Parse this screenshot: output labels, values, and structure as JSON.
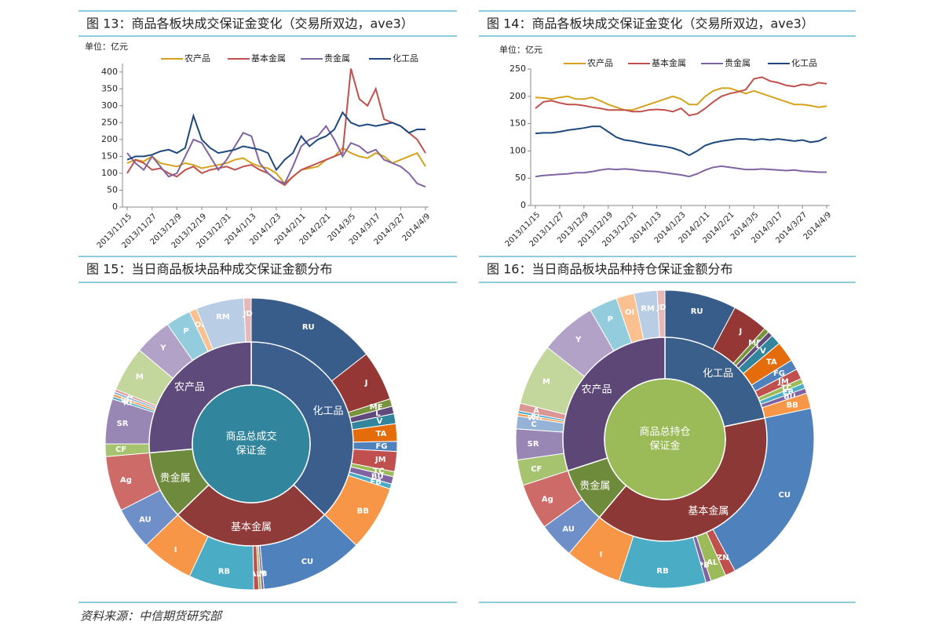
{
  "source": "资料来源：中信期货研究部",
  "chart_data": [
    {
      "type": "line",
      "title": "图 13：商品各板块成交保证金变化（交易所双边，ave3）",
      "unit_label": "单位：亿元",
      "categories": [
        "2013/11/15",
        null,
        null,
        "2013/11/27",
        null,
        null,
        "2013/12/9",
        null,
        null,
        "2013/12/19",
        null,
        null,
        "2013/12/31",
        null,
        null,
        "2014/1/13",
        null,
        null,
        "2014/1/23",
        null,
        null,
        "2014/2/11",
        null,
        null,
        "2014/2/21",
        null,
        null,
        "2014/3/5",
        null,
        null,
        "2014/3/17",
        null,
        null,
        "2014/3/27",
        null,
        null,
        "2014/4/9"
      ],
      "series": [
        {
          "name": "农产品",
          "color": "#d4a21c",
          "values": [
            130,
            140,
            135,
            150,
            130,
            125,
            120,
            130,
            125,
            115,
            120,
            125,
            130,
            140,
            145,
            130,
            120,
            115,
            100,
            70,
            90,
            110,
            115,
            120,
            140,
            150,
            175,
            160,
            150,
            145,
            160,
            150,
            130,
            140,
            150,
            160,
            120
          ]
        },
        {
          "name": "基本金属",
          "color": "#c0504d",
          "values": [
            100,
            140,
            130,
            110,
            115,
            100,
            90,
            110,
            120,
            100,
            110,
            115,
            120,
            110,
            120,
            125,
            110,
            100,
            80,
            65,
            90,
            110,
            120,
            130,
            140,
            150,
            160,
            410,
            320,
            300,
            350,
            260,
            250,
            240,
            220,
            200,
            160
          ]
        },
        {
          "name": "贵金属",
          "color": "#8064a2",
          "values": [
            160,
            130,
            110,
            150,
            120,
            90,
            100,
            150,
            200,
            190,
            150,
            110,
            140,
            180,
            220,
            210,
            130,
            100,
            80,
            70,
            120,
            180,
            200,
            210,
            240,
            200,
            150,
            190,
            180,
            160,
            170,
            140,
            130,
            120,
            100,
            70,
            60
          ]
        },
        {
          "name": "化工品",
          "color": "#1f497d",
          "values": [
            140,
            150,
            150,
            155,
            165,
            170,
            160,
            175,
            270,
            200,
            175,
            160,
            165,
            170,
            180,
            175,
            170,
            160,
            110,
            140,
            160,
            210,
            180,
            200,
            210,
            230,
            280,
            250,
            240,
            245,
            240,
            245,
            250,
            240,
            220,
            230,
            230
          ]
        }
      ],
      "ylim": [
        0,
        425
      ],
      "yticks": [
        0,
        50,
        100,
        150,
        200,
        250,
        300,
        350,
        400
      ],
      "grid": false
    },
    {
      "type": "line",
      "title": "图 14：商品各板块成交保证金变化（交易所双边，ave3）",
      "unit_label": "单位：亿元",
      "categories": [
        "2013/11/15",
        null,
        null,
        "2013/11/27",
        null,
        null,
        "2013/12/9",
        null,
        null,
        "2013/12/19",
        null,
        null,
        "2013/12/31",
        null,
        null,
        "2014/1/13",
        null,
        null,
        "2014/1/23",
        null,
        null,
        "2014/2/11",
        null,
        null,
        "2014/2/21",
        null,
        null,
        "2014/3/5",
        null,
        null,
        "2014/3/17",
        null,
        null,
        "2014/3/27",
        null,
        null,
        "2014/4/9"
      ],
      "series": [
        {
          "name": "农产品",
          "color": "#d4a21c",
          "values": [
            198,
            197,
            195,
            198,
            200,
            195,
            195,
            198,
            192,
            185,
            180,
            175,
            175,
            180,
            185,
            190,
            195,
            200,
            195,
            185,
            185,
            200,
            210,
            215,
            215,
            210,
            205,
            210,
            205,
            200,
            195,
            190,
            185,
            185,
            183,
            180,
            182
          ]
        },
        {
          "name": "基本金属",
          "color": "#c0504d",
          "values": [
            178,
            190,
            192,
            188,
            185,
            185,
            183,
            180,
            178,
            175,
            175,
            175,
            172,
            172,
            175,
            176,
            175,
            172,
            178,
            165,
            168,
            178,
            190,
            200,
            205,
            208,
            212,
            232,
            235,
            228,
            225,
            220,
            218,
            222,
            220,
            225,
            223
          ]
        },
        {
          "name": "贵金属",
          "color": "#8064a2",
          "values": [
            53,
            55,
            56,
            57,
            58,
            60,
            60,
            62,
            65,
            67,
            66,
            67,
            66,
            64,
            63,
            62,
            60,
            58,
            56,
            53,
            58,
            65,
            70,
            72,
            70,
            68,
            66,
            66,
            67,
            66,
            65,
            64,
            65,
            63,
            62,
            61,
            61
          ]
        },
        {
          "name": "化工品",
          "color": "#1f497d",
          "values": [
            132,
            133,
            133,
            135,
            138,
            140,
            142,
            145,
            145,
            135,
            125,
            120,
            118,
            115,
            112,
            110,
            108,
            105,
            100,
            92,
            100,
            110,
            115,
            118,
            120,
            122,
            122,
            120,
            122,
            120,
            122,
            120,
            118,
            120,
            116,
            118,
            125
          ]
        }
      ],
      "ylim": [
        0,
        250
      ],
      "yticks": [
        0,
        50,
        100,
        150,
        200,
        250
      ],
      "grid": false
    },
    {
      "type": "sunburst",
      "title": "图 15：当日商品板块品种成交保证金额分布",
      "center_label": [
        "商品总成交",
        "保证金"
      ],
      "center_color": "#31859c",
      "groups": [
        {
          "name": "化工品",
          "color": "#3b5e8c",
          "items": [
            {
              "name": "RU",
              "value": 52,
              "color": "#385d8a"
            },
            {
              "name": "J",
              "value": 20,
              "color": "#953735"
            },
            {
              "name": "ME",
              "value": 3,
              "color": "#77933c"
            },
            {
              "name": "L",
              "value": 3,
              "color": "#604a7b"
            },
            {
              "name": "V",
              "value": 4,
              "color": "#31859c"
            },
            {
              "name": "TA",
              "value": 7,
              "color": "#e46c0a"
            },
            {
              "name": "FG",
              "value": 4,
              "color": "#4f81bd"
            },
            {
              "name": "JM",
              "value": 8,
              "color": "#c0504d"
            },
            {
              "name": "TC",
              "value": 2,
              "color": "#9bbb59"
            },
            {
              "name": "BU",
              "value": 3,
              "color": "#8064a2"
            },
            {
              "name": "FB",
              "value": 2,
              "color": "#4bacc6"
            },
            {
              "name": "BB",
              "value": 26,
              "color": "#f79646"
            }
          ]
        },
        {
          "name": "基本金属",
          "color": "#8e3b3a",
          "items": [
            {
              "name": "CU",
              "value": 41,
              "color": "#4f81bd"
            },
            {
              "name": "PB",
              "value": 1,
              "color": "#8064a2"
            },
            {
              "name": "ZN",
              "value": 1,
              "color": "#9bbb59"
            },
            {
              "name": "AL",
              "value": 2,
              "color": "#c0504d"
            },
            {
              "name": "RB",
              "value": 26,
              "color": "#4bacc6"
            },
            {
              "name": "I",
              "value": 21,
              "color": "#f79646"
            }
          ]
        },
        {
          "name": "贵金属",
          "color": "#6e8b3d",
          "items": [
            {
              "name": "AU",
              "value": 17,
              "color": "#6f8fc8"
            },
            {
              "name": "Ag",
              "value": 22,
              "color": "#cd6b69"
            }
          ]
        },
        {
          "name": "农产品",
          "color": "#5f4b7b",
          "items": [
            {
              "name": "CF",
              "value": 5,
              "color": "#a6c470"
            },
            {
              "name": "SR",
              "value": 18,
              "color": "#9886b5"
            },
            {
              "name": "RI",
              "value": 1,
              "color": "#4bacc6"
            },
            {
              "name": "WH",
              "value": 1,
              "color": "#f79646"
            },
            {
              "name": "C",
              "value": 1,
              "color": "#95b3d7"
            },
            {
              "name": "A",
              "value": 1,
              "color": "#d99694"
            },
            {
              "name": "M",
              "value": 18,
              "color": "#c3d69b"
            },
            {
              "name": "Y",
              "value": 15,
              "color": "#b3a2c7"
            },
            {
              "name": "P",
              "value": 10,
              "color": "#93cddd"
            },
            {
              "name": "OI",
              "value": 3,
              "color": "#fac090"
            },
            {
              "name": "RM",
              "value": 19,
              "color": "#b9cde5"
            },
            {
              "name": "JD",
              "value": 3,
              "color": "#e6b9b8"
            }
          ]
        }
      ]
    },
    {
      "type": "sunburst",
      "title": "图 16：当日商品板块品种持仓保证金额分布",
      "center_label": [
        "商品总持仓",
        "保证金"
      ],
      "center_color": "#9bbb59",
      "groups": [
        {
          "name": "化工品",
          "color": "#3a5f8b",
          "items": [
            {
              "name": "RU",
              "value": 28,
              "color": "#385d8a"
            },
            {
              "name": "J",
              "value": 14,
              "color": "#953735"
            },
            {
              "name": "ME",
              "value": 2,
              "color": "#77933c"
            },
            {
              "name": "L",
              "value": 2,
              "color": "#604a7b"
            },
            {
              "name": "V",
              "value": 4,
              "color": "#31859c"
            },
            {
              "name": "TA",
              "value": 8,
              "color": "#e46c0a"
            },
            {
              "name": "FG",
              "value": 4,
              "color": "#4f81bd"
            },
            {
              "name": "JM",
              "value": 4,
              "color": "#c0504d"
            },
            {
              "name": "TC",
              "value": 2,
              "color": "#9bbb59"
            },
            {
              "name": "FB",
              "value": 2,
              "color": "#4bacc6"
            },
            {
              "name": "BU",
              "value": 2,
              "color": "#8064a2"
            },
            {
              "name": "BB",
              "value": 6,
              "color": "#f79646"
            }
          ]
        },
        {
          "name": "基本金属",
          "color": "#8c3836",
          "items": [
            {
              "name": "CU",
              "value": 74,
              "color": "#4f81bd"
            },
            {
              "name": "ZN",
              "value": 4,
              "color": "#c0504d"
            },
            {
              "name": "AL",
              "value": 6,
              "color": "#9bbb59"
            },
            {
              "name": "PB",
              "value": 2,
              "color": "#8064a2"
            },
            {
              "name": "RB",
              "value": 34,
              "color": "#4bacc6"
            },
            {
              "name": "I",
              "value": 22,
              "color": "#f79646"
            }
          ]
        },
        {
          "name": "贵金属",
          "color": "#6e8a3b",
          "items": [
            {
              "name": "AU",
              "value": 14,
              "color": "#6f8fc8"
            },
            {
              "name": "Ag",
              "value": 18,
              "color": "#cd6b69"
            }
          ]
        },
        {
          "name": "农产品",
          "color": "#5c4776",
          "items": [
            {
              "name": "CF",
              "value": 10,
              "color": "#a6c470"
            },
            {
              "name": "SR",
              "value": 12,
              "color": "#9886b5"
            },
            {
              "name": "C",
              "value": 5,
              "color": "#95b3d7"
            },
            {
              "name": "WH",
              "value": 1,
              "color": "#f79646"
            },
            {
              "name": "RI",
              "value": 1,
              "color": "#4bacc6"
            },
            {
              "name": "A",
              "value": 3,
              "color": "#d99694"
            },
            {
              "name": "M",
              "value": 24,
              "color": "#c3d69b"
            },
            {
              "name": "Y",
              "value": 22,
              "color": "#b3a2c7"
            },
            {
              "name": "P",
              "value": 11,
              "color": "#93cddd"
            },
            {
              "name": "OI",
              "value": 7,
              "color": "#fac090"
            },
            {
              "name": "RM",
              "value": 9,
              "color": "#b9cde5"
            },
            {
              "name": "JD",
              "value": 3,
              "color": "#e6b9b8"
            }
          ]
        }
      ]
    }
  ]
}
